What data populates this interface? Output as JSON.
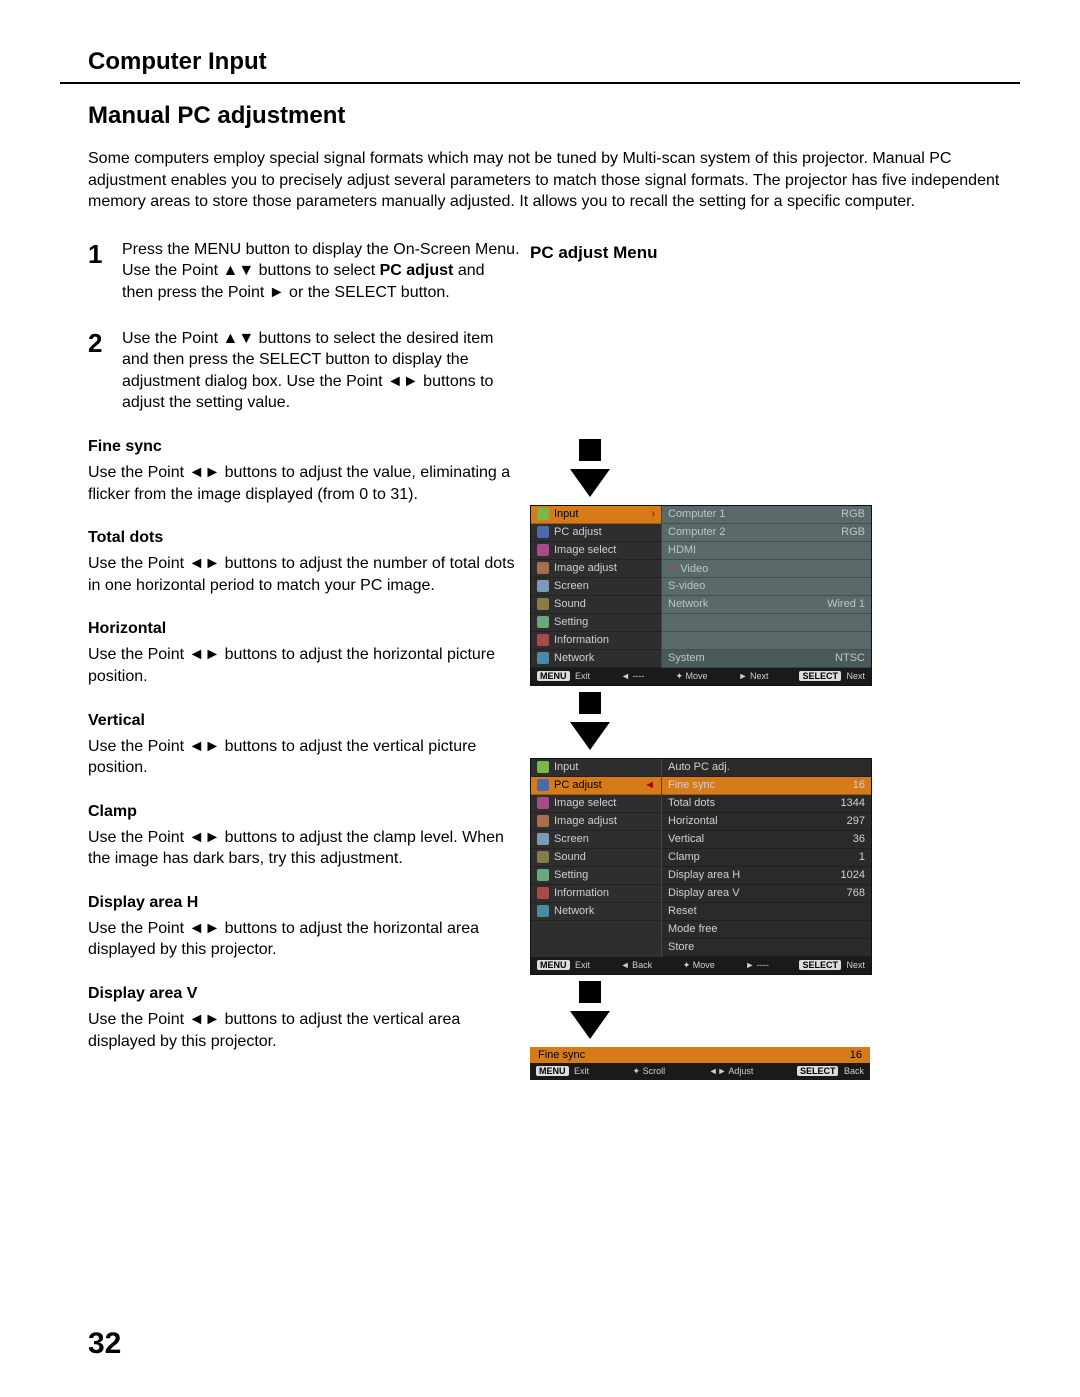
{
  "header": {
    "title": "Computer Input"
  },
  "section": {
    "title": "Manual PC adjustment"
  },
  "intro": "Some computers employ special signal formats which may not be tuned by Multi-scan system of this projector. Manual PC adjustment enables you to precisely adjust several parameters to match those signal formats. The projector has five independent memory areas to store those parameters manually adjusted. It allows you to recall the setting for a specific computer.",
  "steps": [
    {
      "num": "1",
      "text": "Press the MENU button to display the On-Screen Menu. Use the Point ▲▼ buttons to select PC adjust and then press the Point ► or the SELECT button.",
      "bold": "PC adjust"
    },
    {
      "num": "2",
      "text": "Use the Point ▲▼ buttons to select the desired item and then press the SELECT button to display the adjustment dialog box. Use the Point ◄► buttons to adjust the setting value."
    }
  ],
  "items": [
    {
      "title": "Fine sync",
      "text": "Use the Point ◄► buttons to adjust the value, eliminating a flicker from the image displayed (from 0 to 31)."
    },
    {
      "title": "Total dots",
      "text": "Use the Point ◄► buttons to adjust the number of total dots in one horizontal period to match your PC image."
    },
    {
      "title": "Horizontal",
      "text": "Use the Point ◄► buttons to adjust the horizontal picture position."
    },
    {
      "title": "Vertical",
      "text": "Use the Point ◄► buttons to adjust the vertical picture position."
    },
    {
      "title": "Clamp",
      "text": "Use the Point ◄► buttons to adjust the clamp level. When the image has dark bars, try this adjustment."
    },
    {
      "title": "Display area H",
      "text": "Use the Point ◄► buttons to adjust the horizontal area displayed by this projector."
    },
    {
      "title": "Display area V",
      "text": "Use the Point ◄► buttons to adjust the vertical area displayed by this projector."
    }
  ],
  "right_title": "PC adjust Menu",
  "menu1": {
    "left": [
      {
        "label": "Input",
        "color": "#7ab84a",
        "sel": true
      },
      {
        "label": "PC adjust",
        "color": "#4a6aa8"
      },
      {
        "label": "Image select",
        "color": "#a84a8a"
      },
      {
        "label": "Image adjust",
        "color": "#a8704a"
      },
      {
        "label": "Screen",
        "color": "#7a9ab8"
      },
      {
        "label": "Sound",
        "color": "#8a7a4a"
      },
      {
        "label": "Setting",
        "color": "#6aa87a"
      },
      {
        "label": "Information",
        "color": "#a84a4a"
      },
      {
        "label": "Network",
        "color": "#4a8aa8"
      }
    ],
    "right": [
      {
        "l": "Computer 1",
        "r": "RGB"
      },
      {
        "l": "Computer 2",
        "r": "RGB"
      },
      {
        "l": "HDMI",
        "r": ""
      },
      {
        "l": "Video",
        "r": "",
        "mark": true
      },
      {
        "l": "S-video",
        "r": ""
      },
      {
        "l": "Network",
        "r": "Wired 1"
      }
    ],
    "sys": {
      "l": "System",
      "r": "NTSC"
    },
    "footer": [
      "MENU Exit",
      "◄ ----",
      "✦ Move",
      "► Next",
      "SELECT Next"
    ]
  },
  "menu2": {
    "left": [
      {
        "label": "Input",
        "color": "#7ab84a"
      },
      {
        "label": "PC adjust",
        "color": "#4a6aa8",
        "sel": true
      },
      {
        "label": "Image select",
        "color": "#a84a8a"
      },
      {
        "label": "Image adjust",
        "color": "#a8704a"
      },
      {
        "label": "Screen",
        "color": "#7a9ab8"
      },
      {
        "label": "Sound",
        "color": "#8a7a4a"
      },
      {
        "label": "Setting",
        "color": "#6aa87a"
      },
      {
        "label": "Information",
        "color": "#a84a4a"
      },
      {
        "label": "Network",
        "color": "#4a8aa8"
      }
    ],
    "right": [
      {
        "l": "Auto PC adj.",
        "r": ""
      },
      {
        "l": "Fine sync",
        "r": "16",
        "sel": true
      },
      {
        "l": "Total dots",
        "r": "1344"
      },
      {
        "l": "Horizontal",
        "r": "297"
      },
      {
        "l": "Vertical",
        "r": "36"
      },
      {
        "l": "Clamp",
        "r": "1"
      },
      {
        "l": "Display area H",
        "r": "1024"
      },
      {
        "l": "Display area V",
        "r": "768"
      },
      {
        "l": "Reset",
        "r": ""
      },
      {
        "l": "Mode free",
        "r": ""
      },
      {
        "l": "Store",
        "r": ""
      }
    ],
    "footer": [
      "MENU Exit",
      "◄ Back",
      "✦ Move",
      "► ----",
      "SELECT Next"
    ]
  },
  "adjbar": {
    "label": "Fine sync",
    "value": "16",
    "footer": [
      "MENU Exit",
      "✦ Scroll",
      "◄► Adjust",
      "SELECT Back"
    ]
  },
  "page_number": "32"
}
